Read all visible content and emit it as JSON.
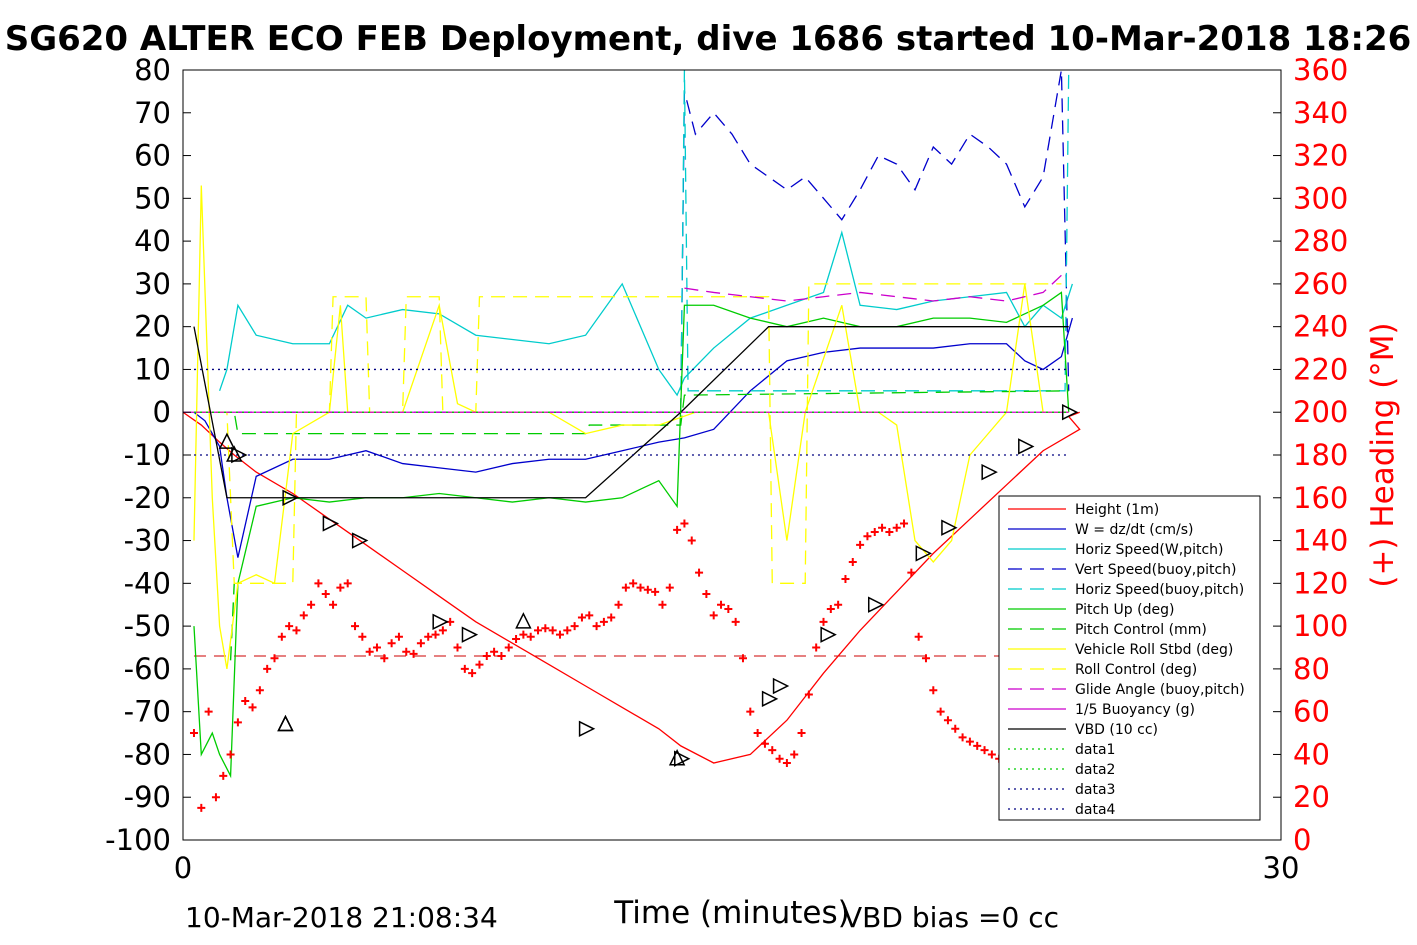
{
  "chart_data": {
    "type": "line",
    "title": "SG620 ALTER ECO FEB Deployment, dive 1686 started 10-Mar-2018 18:26",
    "xlabel": "Time (minutes)",
    "ylabel_right": "(+) Heading (°M)",
    "xlim": [
      0,
      30
    ],
    "ylim": [
      -100,
      80
    ],
    "ylim_right": [
      0,
      360
    ],
    "x_ticks": [
      "0",
      "30"
    ],
    "y_ticks": [
      "80",
      "70",
      "60",
      "50",
      "40",
      "30",
      "20",
      "10",
      "0",
      "-10",
      "-20",
      "-30",
      "-40",
      "-50",
      "-60",
      "-70",
      "-80",
      "-90",
      "-100"
    ],
    "y_right_ticks": [
      "360",
      "340",
      "320",
      "300",
      "280",
      "260",
      "240",
      "220",
      "200",
      "180",
      "160",
      "140",
      "120",
      "100",
      "80",
      "60",
      "40",
      "20",
      "0"
    ],
    "grid": false,
    "legend_position": "lower-right",
    "footer_left": "10-Mar-2018 21:08:34",
    "footer_right": "VBD bias =0 cc",
    "series": [
      {
        "name": "Height (1m)",
        "color": "#ff0000",
        "style": "solid",
        "x": [
          0,
          0.5,
          1.0,
          1.4,
          2.0,
          3.0,
          4.0,
          5.0,
          6.0,
          7.0,
          8.0,
          9.0,
          10.0,
          11.0,
          12.0,
          13.0,
          13.6,
          14.5,
          15.5,
          16.5,
          17.5,
          18.5,
          19.5,
          20.5,
          21.5,
          22.5,
          23.5,
          24.5,
          24.2,
          24.5
        ],
        "y": [
          0,
          -3,
          -7,
          -10,
          -14,
          -19,
          -25,
          -31,
          -37,
          -43,
          -49,
          -54,
          -59,
          -64,
          -69,
          -74,
          -78,
          -82,
          -80,
          -72,
          -61,
          -51,
          -42,
          -33,
          -25,
          -17,
          -9,
          -4,
          -1,
          0
        ]
      },
      {
        "name": "W = dz/dt (cm/s)",
        "color": "#0000cc",
        "style": "solid",
        "x": [
          0.3,
          0.6,
          1.0,
          1.2,
          1.5,
          2.0,
          3.0,
          4.0,
          5.0,
          6.0,
          7.0,
          8.0,
          9.0,
          10.0,
          11.0,
          12.0,
          13.0,
          13.7,
          14.5,
          15.5,
          16.5,
          17.5,
          18.5,
          19.5,
          20.5,
          21.5,
          22.5,
          23.0,
          23.5,
          24.0,
          24.3
        ],
        "y": [
          0,
          -2,
          -8,
          -20,
          -34,
          -15,
          -11,
          -11,
          -9,
          -12,
          -13,
          -14,
          -12,
          -11,
          -11,
          -9,
          -7,
          -6,
          -4,
          5,
          12,
          14,
          15,
          15,
          15,
          16,
          16,
          12,
          10,
          13,
          22
        ]
      },
      {
        "name": "Horiz Speed(W,pitch)",
        "color": "#00cccc",
        "style": "solid",
        "x": [
          1.0,
          1.2,
          1.5,
          2.0,
          3.0,
          4.0,
          4.5,
          5.0,
          6.0,
          7.0,
          8.0,
          9.0,
          10.0,
          11.0,
          12.0,
          12.5,
          13.0,
          13.5,
          13.7,
          14.5,
          15.5,
          16.5,
          17.5,
          18.0,
          18.5,
          19.5,
          20.5,
          21.5,
          22.5,
          23.0,
          23.5,
          24.0,
          24.3
        ],
        "y": [
          5,
          10,
          25,
          18,
          16,
          16,
          25,
          22,
          24,
          23,
          18,
          17,
          16,
          18,
          30,
          20,
          10,
          4,
          8,
          15,
          22,
          25,
          28,
          42,
          25,
          24,
          26,
          27,
          28,
          20,
          25,
          22,
          30
        ]
      },
      {
        "name": "Vert Speed(buoy,pitch)",
        "color": "#0000cc",
        "style": "dashed",
        "x": [
          13.6,
          13.7,
          14.0,
          14.5,
          15.0,
          15.5,
          16.0,
          16.5,
          17.0,
          17.5,
          18.0,
          18.5,
          19.0,
          19.5,
          20.0,
          20.5,
          21.0,
          21.5,
          22.0,
          22.5,
          23.0,
          23.5,
          24.0,
          24.2
        ],
        "y": [
          0,
          75,
          65,
          70,
          65,
          58,
          55,
          52,
          55,
          50,
          45,
          52,
          60,
          58,
          52,
          62,
          58,
          65,
          62,
          58,
          48,
          55,
          80,
          5
        ]
      },
      {
        "name": "Horiz Speed(buoy,pitch)",
        "color": "#00cccc",
        "style": "dashed",
        "x": [
          13.6,
          13.7,
          13.8,
          24.1,
          24.2
        ],
        "y": [
          0,
          80,
          5,
          5,
          80
        ]
      },
      {
        "name": "Pitch Up (deg)",
        "color": "#00cc00",
        "style": "solid",
        "x": [
          0.3,
          0.5,
          0.8,
          1.0,
          1.3,
          1.5,
          2.0,
          3.0,
          4.0,
          5.0,
          6.0,
          7.0,
          8.0,
          9.0,
          10.0,
          11.0,
          12.0,
          12.5,
          13.0,
          13.5,
          13.7,
          14.5,
          15.5,
          16.5,
          17.5,
          18.5,
          19.5,
          20.5,
          21.5,
          22.5,
          23.5,
          24.0,
          24.2
        ],
        "y": [
          -50,
          -80,
          -75,
          -80,
          -85,
          -40,
          -22,
          -20,
          -21,
          -20,
          -20,
          -19,
          -20,
          -21,
          -20,
          -21,
          -20,
          -18,
          -16,
          -22,
          25,
          25,
          22,
          20,
          22,
          20,
          20,
          22,
          22,
          21,
          25,
          28,
          0
        ]
      },
      {
        "name": "Pitch Control (mm)",
        "color": "#00cc00",
        "style": "dashed",
        "x": [
          0.3,
          1.4,
          1.5,
          11.0,
          11.1,
          13.6,
          13.7,
          24.2
        ],
        "y": [
          0,
          0,
          -5,
          -5,
          -3,
          -3,
          4,
          5
        ]
      },
      {
        "name": "Vehicle Roll Stbd (deg)",
        "color": "#ffff00",
        "style": "solid",
        "x": [
          0.3,
          0.5,
          0.8,
          1.0,
          1.2,
          1.5,
          2.0,
          2.5,
          3.0,
          4.0,
          4.3,
          4.5,
          5.0,
          6.0,
          7.0,
          7.5,
          8.0,
          9.0,
          10.0,
          11.0,
          12.0,
          13.0,
          14.0,
          15.0,
          16.0,
          16.5,
          17.0,
          18.0,
          18.5,
          19.0,
          19.5,
          20.0,
          20.5,
          21.0,
          21.5,
          22.0,
          22.5,
          23.0,
          23.5,
          24.0,
          24.2
        ],
        "y": [
          -30,
          53,
          -20,
          -50,
          -60,
          -40,
          -38,
          -40,
          -5,
          0,
          25,
          0,
          0,
          0,
          25,
          2,
          0,
          0,
          0,
          -5,
          -3,
          -3,
          0,
          0,
          0,
          -30,
          0,
          25,
          0,
          0,
          -3,
          -30,
          -35,
          -30,
          -10,
          -5,
          0,
          30,
          0,
          0,
          0
        ]
      },
      {
        "name": "Roll Control (deg)",
        "color": "#ffff00",
        "style": "dashed",
        "x": [
          0.3,
          1.2,
          1.4,
          3.0,
          3.1,
          4.0,
          4.1,
          5.0,
          5.1,
          6.0,
          6.1,
          7.0,
          7.1,
          8.0,
          8.1,
          16.0,
          16.1,
          17.0,
          17.1,
          24.0
        ],
        "y": [
          0,
          0,
          -40,
          -40,
          0,
          0,
          27,
          27,
          0,
          0,
          27,
          27,
          0,
          0,
          27,
          27,
          -40,
          -40,
          30,
          30
        ]
      },
      {
        "name": "Glide Angle (buoy,pitch)",
        "color": "#cc00cc",
        "style": "dashed",
        "x": [
          13.7,
          14.5,
          15.5,
          16.5,
          17.5,
          18.5,
          19.5,
          20.5,
          21.5,
          22.5,
          23.5,
          24.0
        ],
        "y": [
          29,
          28,
          27,
          26,
          27,
          28,
          27,
          26,
          27,
          26,
          28,
          32
        ]
      },
      {
        "name": "1/5 Buoyancy (g)",
        "color": "#cc00cc",
        "style": "solid",
        "x": [
          0,
          24.2
        ],
        "y": [
          0,
          0
        ]
      },
      {
        "name": "VBD (10 cc)",
        "color": "#000000",
        "style": "solid",
        "x": [
          0.3,
          1.2,
          11.0,
          13.6,
          16.0,
          24.2
        ],
        "y": [
          20,
          -20,
          -20,
          0,
          20,
          20
        ]
      },
      {
        "name": "data1",
        "color": "#00cc00",
        "style": "dotted",
        "x": [
          0.3,
          24.2
        ],
        "y": [
          0,
          0
        ]
      },
      {
        "name": "data2",
        "color": "#00cc00",
        "style": "dotted",
        "x": [
          0.3,
          24.2
        ],
        "y": [
          0,
          0
        ]
      },
      {
        "name": "data3",
        "color": "#000080",
        "style": "dotted",
        "x": [
          0.3,
          24.2
        ],
        "y": [
          10,
          10
        ]
      },
      {
        "name": "data4",
        "color": "#000080",
        "style": "dotted",
        "x": [
          0.3,
          24.2
        ],
        "y": [
          -10,
          -10
        ]
      }
    ],
    "extra_lines": [
      {
        "color": "#7f00ff",
        "style": "dashed",
        "x": [
          0.3,
          13.6
        ],
        "y": [
          0,
          0
        ]
      },
      {
        "color": "#00cc00",
        "style": "dashed",
        "x": [
          1.3,
          1.4
        ],
        "y": [
          -58,
          -40
        ]
      }
    ],
    "heading_reference": {
      "color": "#cc0000",
      "style": "dashed",
      "heading": 86
    },
    "heading_points": {
      "color": "#ff0000",
      "marker": "+",
      "x": [
        0.3,
        0.5,
        0.7,
        0.9,
        1.1,
        1.3,
        1.5,
        1.7,
        1.9,
        2.1,
        2.3,
        2.5,
        2.7,
        2.9,
        3.1,
        3.3,
        3.5,
        3.7,
        3.9,
        4.1,
        4.3,
        4.5,
        4.7,
        4.9,
        5.1,
        5.3,
        5.5,
        5.7,
        5.9,
        6.1,
        6.3,
        6.5,
        6.7,
        6.9,
        7.1,
        7.3,
        7.5,
        7.7,
        7.9,
        8.1,
        8.3,
        8.5,
        8.7,
        8.9,
        9.1,
        9.3,
        9.5,
        9.7,
        9.9,
        10.1,
        10.3,
        10.5,
        10.7,
        10.9,
        11.1,
        11.3,
        11.5,
        11.7,
        11.9,
        12.1,
        12.3,
        12.5,
        12.7,
        12.9,
        13.1,
        13.3,
        13.5,
        13.7,
        13.9,
        14.1,
        14.3,
        14.5,
        14.7,
        14.9,
        15.1,
        15.3,
        15.5,
        15.7,
        15.9,
        16.1,
        16.3,
        16.5,
        16.7,
        16.9,
        17.1,
        17.3,
        17.5,
        17.7,
        17.9,
        18.1,
        18.3,
        18.5,
        18.7,
        18.9,
        19.1,
        19.3,
        19.5,
        19.7,
        19.9,
        20.1,
        20.3,
        20.5,
        20.7,
        20.9,
        21.1,
        21.3,
        21.5,
        21.7,
        21.9,
        22.1,
        22.3,
        22.5,
        22.7,
        22.9,
        23.1,
        23.3
      ],
      "y": [
        50,
        15,
        60,
        20,
        30,
        40,
        55,
        65,
        62,
        70,
        80,
        85,
        95,
        100,
        98,
        105,
        110,
        120,
        115,
        110,
        118,
        120,
        100,
        95,
        88,
        90,
        85,
        92,
        95,
        88,
        87,
        92,
        95,
        96,
        98,
        102,
        90,
        80,
        78,
        82,
        86,
        88,
        86,
        90,
        94,
        96,
        95,
        98,
        99,
        98,
        96,
        98,
        100,
        104,
        105,
        100,
        102,
        104,
        110,
        118,
        120,
        118,
        117,
        116,
        110,
        118,
        145,
        148,
        140,
        125,
        115,
        105,
        110,
        108,
        102,
        85,
        60,
        50,
        45,
        42,
        38,
        36,
        40,
        50,
        68,
        90,
        102,
        108,
        110,
        122,
        130,
        138,
        142,
        144,
        146,
        144,
        146,
        148,
        125,
        95,
        85,
        70,
        60,
        56,
        52,
        48,
        46,
        44,
        42,
        40,
        38,
        36,
        38,
        40,
        42,
        44
      ]
    },
    "markers": {
      "up_triangle": [
        [
          1.2,
          -7
        ],
        [
          2.8,
          -73
        ],
        [
          9.3,
          -49
        ],
        [
          13.5,
          -81
        ],
        [
          1.4,
          -10
        ],
        [
          2.8,
          -73
        ]
      ],
      "right_triangle": [
        [
          1.5,
          -10
        ],
        [
          2.9,
          -20
        ],
        [
          4.0,
          -26
        ],
        [
          4.8,
          -30
        ],
        [
          7.0,
          -49
        ],
        [
          7.8,
          -52
        ],
        [
          11.0,
          -74
        ],
        [
          13.6,
          -81
        ],
        [
          16.0,
          -67
        ],
        [
          16.3,
          -64
        ],
        [
          17.6,
          -52
        ],
        [
          18.9,
          -45
        ],
        [
          20.2,
          -33
        ],
        [
          20.9,
          -27
        ],
        [
          22.0,
          -14
        ],
        [
          23.0,
          -8
        ],
        [
          24.2,
          0
        ]
      ]
    }
  }
}
